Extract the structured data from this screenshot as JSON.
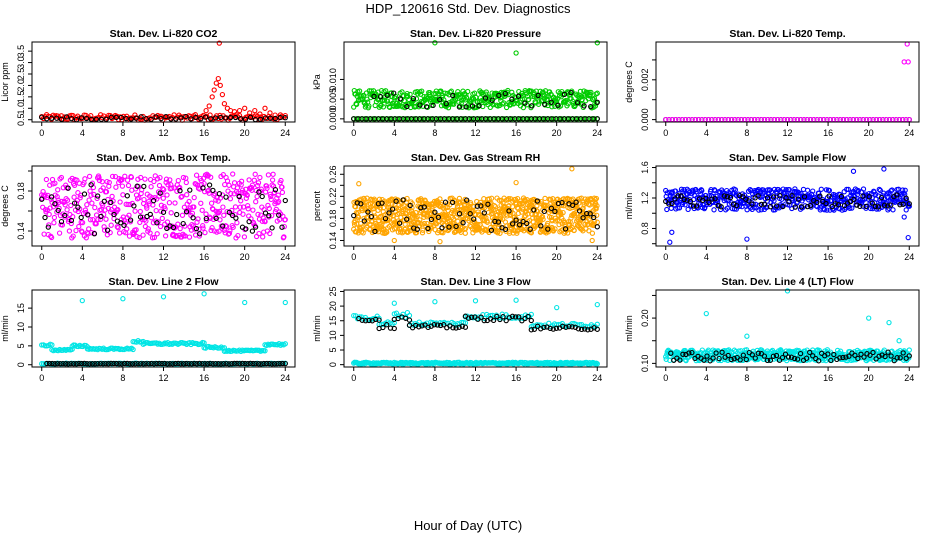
{
  "page": {
    "title": "HDP_120616  Std. Dev. Diagnostics",
    "xlabel": "Hour of Day (UTC)"
  },
  "colors": {
    "red": "#ff0000",
    "green": "#00cc00",
    "magenta": "#ff00ff",
    "orange": "#ffa500",
    "blue": "#0000ff",
    "cyan": "#00e5e5",
    "black": "#000000"
  },
  "chart_data": [
    {
      "type": "scatter",
      "title": "Stan. Dev. Li-820 CO2",
      "ylabel": "Licor ppm",
      "xlim": [
        -0.96,
        24.96
      ],
      "ylim": [
        0.4,
        3.9
      ],
      "xticks": [
        0,
        4,
        8,
        12,
        16,
        20,
        24
      ],
      "yticks": [
        0.5,
        1.0,
        1.5,
        2.0,
        2.5,
        3.0,
        3.5
      ],
      "yticklabels": [
        "0.5",
        "1.0",
        "1.5",
        "2.0",
        "2.5",
        "3.0",
        "3.5"
      ],
      "series": [
        {
          "color": "red",
          "kind": "band",
          "xmin": 0,
          "xmax": 24,
          "base": 0.6,
          "spread": 0.12,
          "n": 150
        },
        {
          "color": "red",
          "kind": "points",
          "x": [
            16.2,
            16.5,
            16.8,
            17.0,
            17.2,
            17.4,
            17.5,
            17.6,
            17.8,
            18.0,
            18.3,
            18.6,
            19.0,
            19.5,
            20.0,
            20.5,
            21.0,
            21.5,
            22.0,
            22.5,
            23.0
          ],
          "y": [
            0.9,
            1.1,
            1.5,
            1.8,
            2.1,
            2.3,
            3.85,
            2.0,
            1.6,
            1.2,
            1.0,
            0.9,
            0.85,
            0.9,
            1.0,
            0.8,
            0.9,
            0.75,
            1.0,
            0.8,
            0.7
          ]
        },
        {
          "color": "black",
          "kind": "band",
          "xmin": 0,
          "xmax": 24,
          "base": 0.57,
          "spread": 0.07,
          "n": 50
        }
      ]
    },
    {
      "type": "scatter",
      "title": "Stan. Dev. Li-820 Pressure",
      "ylabel": "kPa",
      "xlim": [
        -0.96,
        24.96
      ],
      "ylim": [
        -0.0008,
        0.0195
      ],
      "xticks": [
        0,
        4,
        8,
        12,
        16,
        20,
        24
      ],
      "yticks": [
        0.0,
        0.005,
        0.01
      ],
      "yticklabels": [
        "0.000",
        "0.005",
        "0.010"
      ],
      "series": [
        {
          "color": "green",
          "kind": "band",
          "xmin": 0,
          "xmax": 24,
          "base": 0.0,
          "spread": 0.0,
          "n": 90
        },
        {
          "color": "green",
          "kind": "band",
          "xmin": 0,
          "xmax": 24,
          "base": 0.005,
          "spread": 0.0022,
          "n": 420
        },
        {
          "color": "green",
          "kind": "points",
          "x": [
            8.0,
            16.0,
            24.0
          ],
          "y": [
            0.0193,
            0.0167,
            0.0193
          ]
        },
        {
          "color": "black",
          "kind": "band",
          "xmin": 0,
          "xmax": 24,
          "base": 0.0,
          "spread": 0.0,
          "n": 60
        },
        {
          "color": "black",
          "kind": "band",
          "xmin": 2,
          "xmax": 24,
          "base": 0.005,
          "spread": 0.002,
          "n": 35
        }
      ]
    },
    {
      "type": "scatter",
      "title": "Stan. Dev. Li-820 Temp.",
      "ylabel": "degrees C",
      "xlim": [
        -0.96,
        24.96
      ],
      "ylim": [
        -0.00012,
        0.0039
      ],
      "xticks": [
        0,
        4,
        8,
        12,
        16,
        20,
        24
      ],
      "yticks": [
        0.0,
        0.001,
        0.002,
        0.003
      ],
      "yticklabels": [
        "0.000",
        "",
        "0.002",
        ""
      ],
      "series": [
        {
          "color": "black",
          "kind": "band",
          "xmin": 0,
          "xmax": 24,
          "base": 0.0,
          "spread": 0.0,
          "n": 75
        },
        {
          "color": "magenta",
          "kind": "band",
          "xmin": 0,
          "xmax": 24,
          "base": 0.0,
          "spread": 0.0,
          "n": 75
        },
        {
          "color": "magenta",
          "kind": "points",
          "x": [
            23.5,
            23.8,
            23.9
          ],
          "y": [
            0.0029,
            0.0038,
            0.0029
          ]
        }
      ]
    },
    {
      "type": "scatter",
      "title": "Stan. Dev. Amb. Box Temp.",
      "ylabel": "degrees C",
      "xlim": [
        -0.96,
        24.96
      ],
      "ylim": [
        0.125,
        0.205
      ],
      "xticks": [
        0,
        4,
        8,
        12,
        16,
        20,
        24
      ],
      "yticks": [
        0.14,
        0.16,
        0.18,
        0.2
      ],
      "yticklabels": [
        "0.14",
        "",
        "0.18",
        ""
      ],
      "series": [
        {
          "color": "magenta",
          "kind": "band",
          "xmin": 0,
          "xmax": 24,
          "base": 0.165,
          "spread": 0.032,
          "n": 520
        },
        {
          "color": "black",
          "kind": "band",
          "xmin": 0,
          "xmax": 24,
          "base": 0.162,
          "spread": 0.025,
          "n": 75
        }
      ]
    },
    {
      "type": "scatter",
      "title": "Stan. Dev. Gas Stream RH",
      "ylabel": "percent",
      "xlim": [
        -0.96,
        24.96
      ],
      "ylim": [
        0.13,
        0.275
      ],
      "xticks": [
        0,
        4,
        8,
        12,
        16,
        20,
        24
      ],
      "yticks": [
        0.14,
        0.16,
        0.18,
        0.2,
        0.22,
        0.24,
        0.26
      ],
      "yticklabels": [
        "0.14",
        "",
        "0.18",
        "",
        "0.22",
        "",
        "0.26"
      ],
      "series": [
        {
          "color": "orange",
          "kind": "band",
          "xmin": 0,
          "xmax": 24,
          "base": 0.185,
          "spread": 0.032,
          "n": 900
        },
        {
          "color": "orange",
          "kind": "points",
          "x": [
            0.5,
            4.0,
            8.5,
            16.0,
            21.5,
            23.5
          ],
          "y": [
            0.243,
            0.14,
            0.138,
            0.245,
            0.27,
            0.14
          ]
        },
        {
          "color": "black",
          "kind": "band",
          "xmin": 0,
          "xmax": 24,
          "base": 0.185,
          "spread": 0.03,
          "n": 70
        }
      ]
    },
    {
      "type": "scatter",
      "title": "Stan. Dev. Sample Flow",
      "ylabel": "ml/min",
      "xlim": [
        -0.96,
        24.96
      ],
      "ylim": [
        0.57,
        1.62
      ],
      "xticks": [
        0,
        4,
        8,
        12,
        16,
        20,
        24
      ],
      "yticks": [
        0.6,
        0.8,
        1.0,
        1.2,
        1.4,
        1.6
      ],
      "yticklabels": [
        "",
        "0.8",
        "",
        "1.2",
        "",
        "1.6"
      ],
      "series": [
        {
          "color": "blue",
          "kind": "band",
          "xmin": 0,
          "xmax": 24,
          "base": 1.18,
          "spread": 0.14,
          "n": 480
        },
        {
          "color": "blue",
          "kind": "points",
          "x": [
            0.4,
            0.6,
            8.0,
            18.5,
            21.5,
            23.5,
            23.9
          ],
          "y": [
            0.62,
            0.75,
            0.66,
            1.55,
            1.58,
            0.95,
            0.68
          ]
        },
        {
          "color": "black",
          "kind": "band",
          "xmin": 0,
          "xmax": 24,
          "base": 1.16,
          "spread": 0.08,
          "n": 80
        }
      ]
    },
    {
      "type": "scatter",
      "title": "Stan. Dev. Line 2 Flow",
      "ylabel": "ml/min",
      "xlim": [
        -0.96,
        24.96
      ],
      "ylim": [
        -0.6,
        19.8
      ],
      "xticks": [
        0,
        4,
        8,
        12,
        16,
        20,
        24
      ],
      "yticks": [
        0,
        5,
        10,
        15
      ],
      "yticklabels": [
        "0",
        "5",
        "10",
        "15"
      ],
      "series": [
        {
          "color": "cyan",
          "kind": "band",
          "xmin": 0,
          "xmax": 24,
          "base": 0.3,
          "spread": 0.1,
          "n": 140
        },
        {
          "color": "black",
          "kind": "band",
          "xmin": 0.5,
          "xmax": 24,
          "base": 0.3,
          "spread": 0.05,
          "n": 90
        },
        {
          "color": "cyan",
          "kind": "steps",
          "segments": [
            [
              0,
              1,
              5.2
            ],
            [
              1,
              3,
              3.9
            ],
            [
              3,
              4.5,
              5.0
            ],
            [
              4.5,
              9,
              4.2
            ],
            [
              9,
              10,
              6.2
            ],
            [
              10,
              16,
              5.6
            ],
            [
              16,
              18,
              4.6
            ],
            [
              18,
              22,
              3.7
            ],
            [
              22,
              24,
              5.4
            ]
          ],
          "n": 170
        },
        {
          "color": "cyan",
          "kind": "points",
          "x": [
            4.0,
            8.0,
            12.0,
            16.0,
            20.0,
            24.0
          ],
          "y": [
            17.0,
            17.5,
            18.0,
            18.8,
            16.5,
            16.5
          ]
        }
      ]
    },
    {
      "type": "scatter",
      "title": "Stan. Dev. Line 3 Flow",
      "ylabel": "ml/min",
      "xlim": [
        -0.96,
        24.96
      ],
      "ylim": [
        -0.8,
        25.5
      ],
      "xticks": [
        0,
        4,
        8,
        12,
        16,
        20,
        24
      ],
      "yticks": [
        0,
        5,
        10,
        15,
        20,
        25
      ],
      "yticklabels": [
        "0",
        "5",
        "10",
        "15",
        "20",
        "25"
      ],
      "series": [
        {
          "color": "cyan",
          "kind": "band",
          "xmin": 0,
          "xmax": 24,
          "base": 0.5,
          "spread": 0.3,
          "n": 260
        },
        {
          "color": "cyan",
          "kind": "steps",
          "segments": [
            [
              0,
              2.5,
              16.0
            ],
            [
              2.5,
              4,
              14.0
            ],
            [
              4,
              5.5,
              17.0
            ],
            [
              5.5,
              11,
              14.0
            ],
            [
              11,
              17.5,
              16.5
            ],
            [
              17.5,
              24,
              13.5
            ]
          ],
          "n": 130
        },
        {
          "color": "black",
          "kind": "steps",
          "segments": [
            [
              0.5,
              2.5,
              15.5
            ],
            [
              2.5,
              4,
              13.0
            ],
            [
              4,
              5.5,
              16.0
            ],
            [
              5.5,
              11,
              13.0
            ],
            [
              11,
              17.5,
              15.8
            ],
            [
              17.5,
              24,
              12.5
            ]
          ],
          "n": 80
        },
        {
          "color": "cyan",
          "kind": "points",
          "x": [
            4.0,
            8.0,
            12.0,
            16.0,
            20.0,
            24.0
          ],
          "y": [
            21.0,
            21.5,
            21.8,
            22.0,
            19.5,
            20.5
          ]
        }
      ]
    },
    {
      "type": "scatter",
      "title": "Stan. Dev. Line 4 (LT) Flow",
      "ylabel": "ml/min",
      "xlim": [
        -0.96,
        24.96
      ],
      "ylim": [
        0.092,
        0.262
      ],
      "xticks": [
        0,
        4,
        8,
        12,
        16,
        20,
        24
      ],
      "yticks": [
        0.1,
        0.15,
        0.2,
        0.25
      ],
      "yticklabels": [
        "0.10",
        "",
        "0.20",
        ""
      ],
      "series": [
        {
          "color": "cyan",
          "kind": "band",
          "xmin": 0,
          "xmax": 24,
          "base": 0.118,
          "spread": 0.012,
          "n": 480
        },
        {
          "color": "cyan",
          "kind": "points",
          "x": [
            4.0,
            8.0,
            12.0,
            20.0,
            22.0,
            23.0
          ],
          "y": [
            0.21,
            0.16,
            0.26,
            0.2,
            0.19,
            0.15
          ]
        },
        {
          "color": "black",
          "kind": "band",
          "xmin": 0.5,
          "xmax": 24,
          "base": 0.115,
          "spread": 0.01,
          "n": 80
        }
      ]
    }
  ]
}
